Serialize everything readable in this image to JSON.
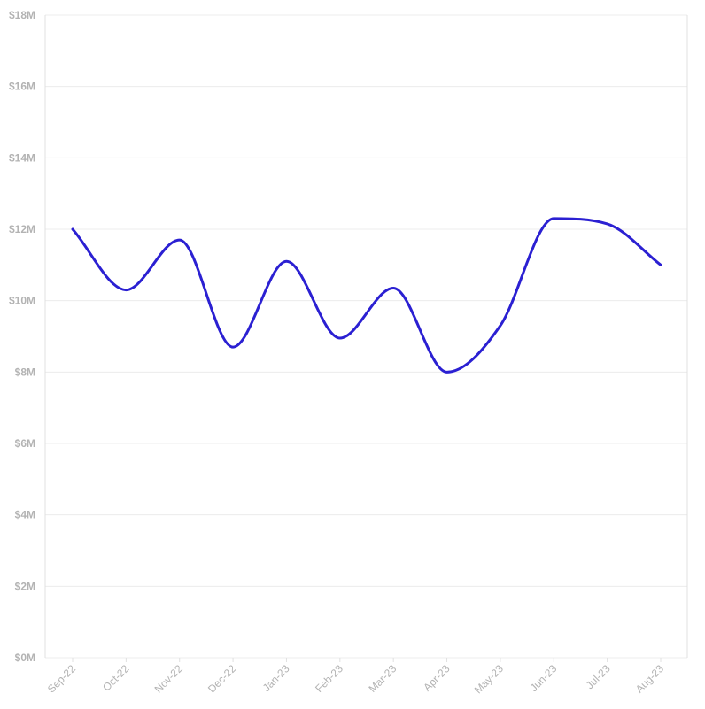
{
  "chart_data": {
    "type": "line",
    "title": "",
    "xlabel": "",
    "ylabel": "",
    "categories": [
      "Sep-22",
      "Oct-22",
      "Nov-22",
      "Dec-22",
      "Jan-23",
      "Feb-23",
      "Mar-23",
      "Apr-23",
      "May-23",
      "Jun-23",
      "Jul-23",
      "Aug-23"
    ],
    "series": [
      {
        "values": [
          12.0,
          10.3,
          11.7,
          8.7,
          11.1,
          8.95,
          10.35,
          8.0,
          9.3,
          12.3,
          12.15,
          11.0
        ]
      }
    ],
    "ylim": [
      0,
      18
    ],
    "y_ticks": [
      0,
      2,
      4,
      6,
      8,
      10,
      12,
      14,
      16,
      18
    ],
    "y_tick_labels": [
      "$0M",
      "$2M",
      "$4M",
      "$6M",
      "$8M",
      "$10M",
      "$12M",
      "$14M",
      "$16M",
      "$18M"
    ],
    "grid": true,
    "legend": "none",
    "colors": {
      "series": "#2b20d2",
      "grid": "#ececec",
      "tick_text": "#b3b3b3"
    }
  }
}
